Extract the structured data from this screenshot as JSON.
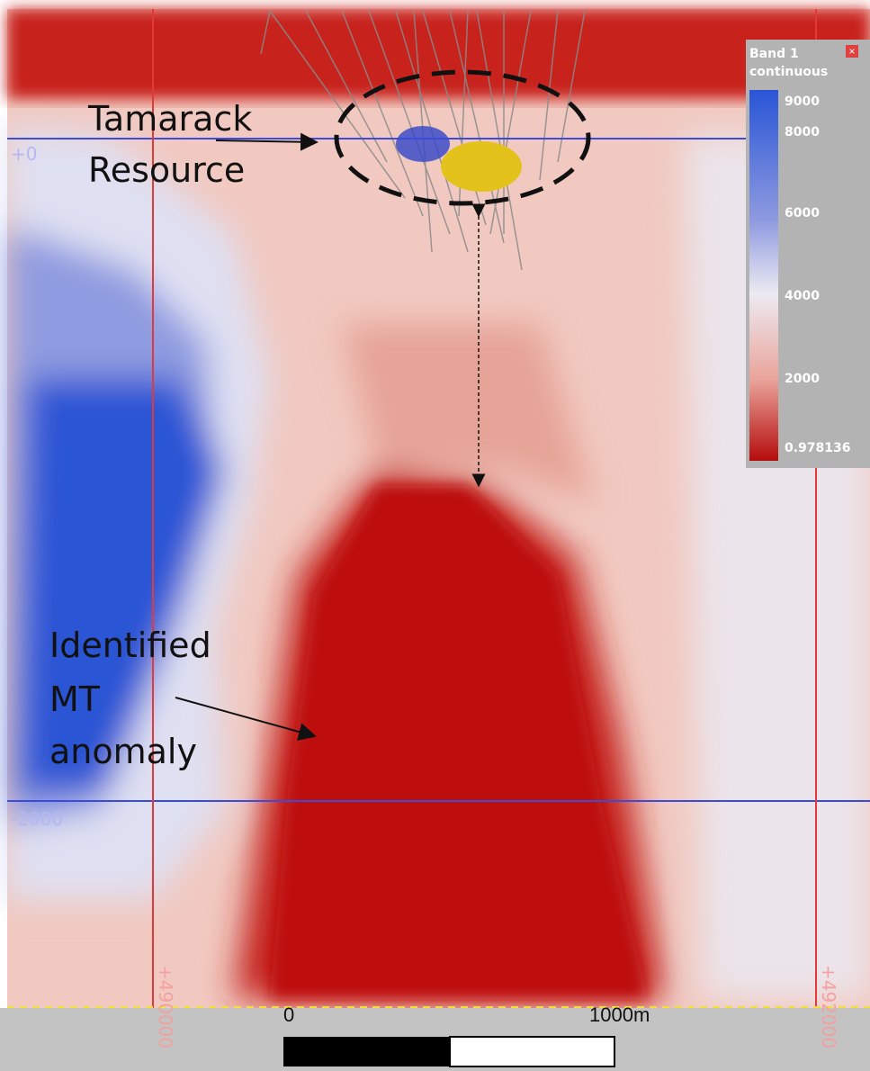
{
  "section": {
    "depth_labels": [
      "+0",
      "-2000"
    ],
    "easting_labels": [
      "+490000",
      "+492000"
    ],
    "annotations": {
      "resource": {
        "lines": [
          "Tamarack",
          "Resource"
        ]
      },
      "anomaly": {
        "lines": [
          "Identified",
          "MT",
          "anomaly"
        ]
      }
    },
    "legend": {
      "title_lines": [
        "Band 1",
        "continuous"
      ],
      "ticks": [
        "9000",
        "8000",
        "6000",
        "4000",
        "2000",
        "0.978136"
      ]
    },
    "scale_bar": {
      "start": "0",
      "end": "1000m"
    }
  }
}
